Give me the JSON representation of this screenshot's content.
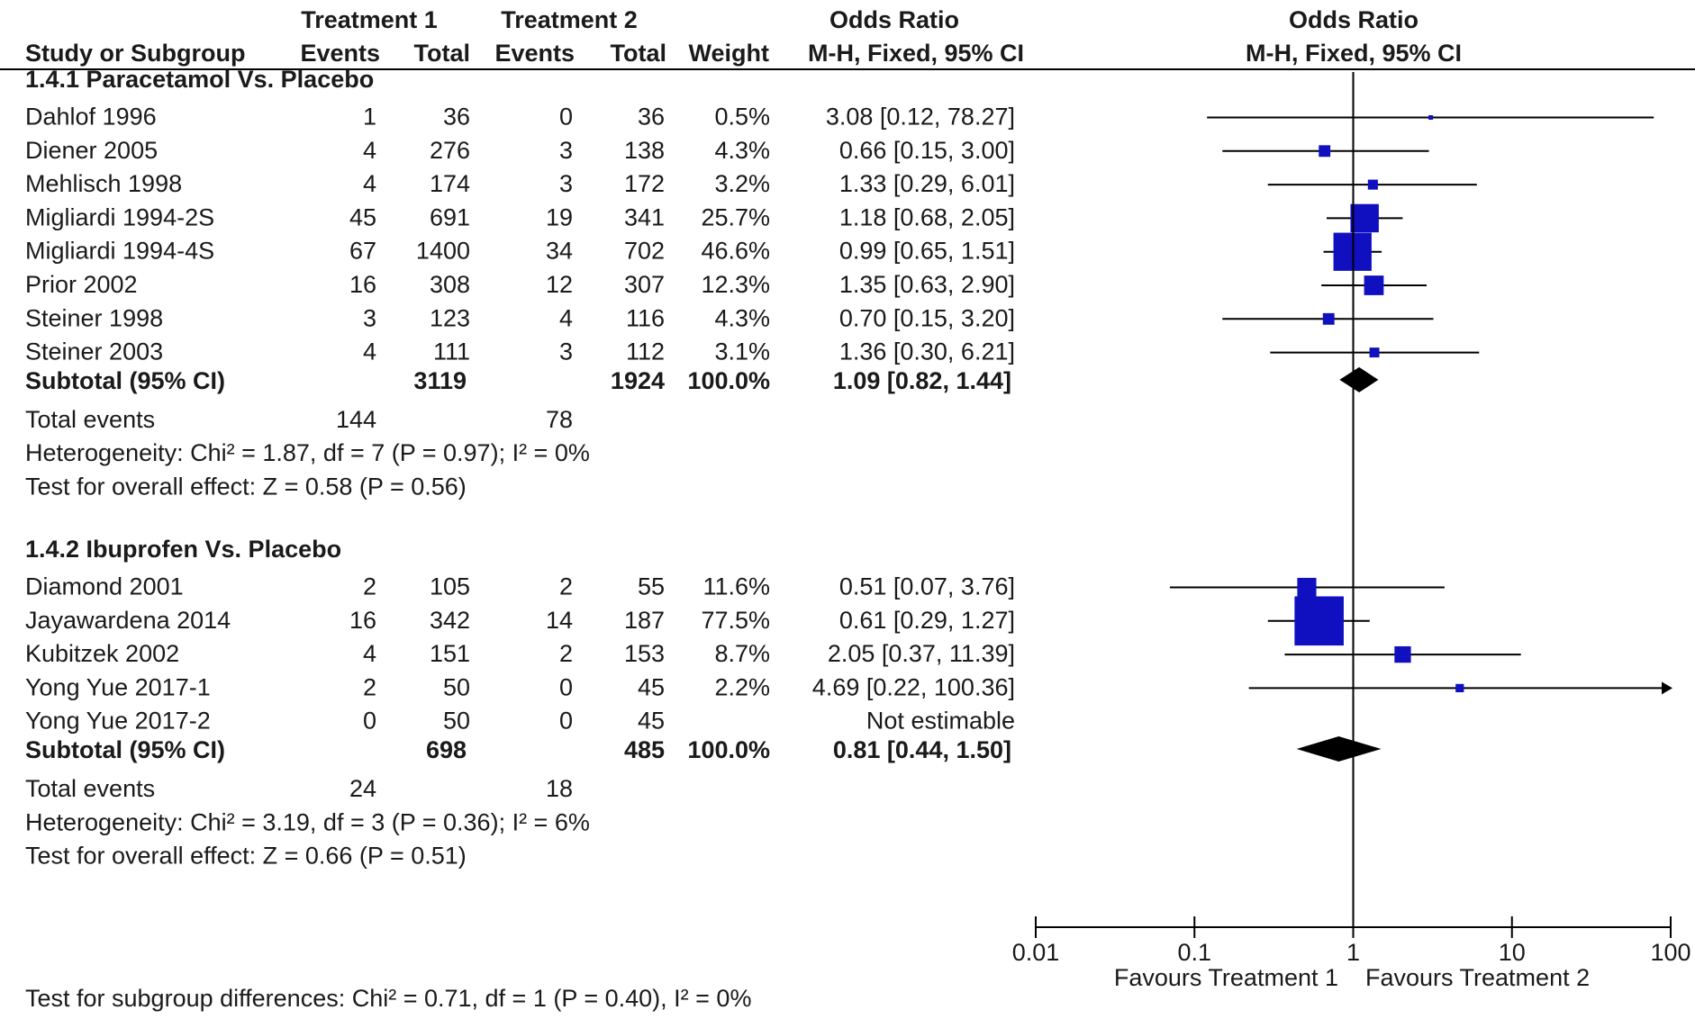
{
  "chart_data": {
    "type": "forest",
    "title": "",
    "header": {
      "group1": "Treatment 1",
      "group2": "Treatment 2",
      "study_col": "Study or Subgroup",
      "events": "Events",
      "total": "Total",
      "weight": "Weight",
      "or_title": "Odds Ratio",
      "or_method": "M-H, Fixed, 95% CI",
      "plot_title": "Odds Ratio",
      "plot_method": "M-H, Fixed, 95% CI"
    },
    "subgroups": [
      {
        "title": "1.4.1 Paracetamol Vs. Placebo",
        "studies": [
          {
            "name": "Dahlof 1996",
            "e1": "1",
            "t1": "36",
            "e2": "0",
            "t2": "36",
            "weight": "0.5%",
            "ci_text": "3.08 [0.12, 78.27]",
            "or": 3.08,
            "lo": 0.12,
            "hi": 78.27,
            "w": 0.5
          },
          {
            "name": "Diener 2005",
            "e1": "4",
            "t1": "276",
            "e2": "3",
            "t2": "138",
            "weight": "4.3%",
            "ci_text": "0.66 [0.15, 3.00]",
            "or": 0.66,
            "lo": 0.15,
            "hi": 3.0,
            "w": 4.3
          },
          {
            "name": "Mehlisch 1998",
            "e1": "4",
            "t1": "174",
            "e2": "3",
            "t2": "172",
            "weight": "3.2%",
            "ci_text": "1.33 [0.29, 6.01]",
            "or": 1.33,
            "lo": 0.29,
            "hi": 6.01,
            "w": 3.2
          },
          {
            "name": "Migliardi 1994-2S",
            "e1": "45",
            "t1": "691",
            "e2": "19",
            "t2": "341",
            "weight": "25.7%",
            "ci_text": "1.18 [0.68, 2.05]",
            "or": 1.18,
            "lo": 0.68,
            "hi": 2.05,
            "w": 25.7
          },
          {
            "name": "Migliardi 1994-4S",
            "e1": "67",
            "t1": "1400",
            "e2": "34",
            "t2": "702",
            "weight": "46.6%",
            "ci_text": "0.99 [0.65, 1.51]",
            "or": 0.99,
            "lo": 0.65,
            "hi": 1.51,
            "w": 46.6
          },
          {
            "name": "Prior 2002",
            "e1": "16",
            "t1": "308",
            "e2": "12",
            "t2": "307",
            "weight": "12.3%",
            "ci_text": "1.35 [0.63, 2.90]",
            "or": 1.35,
            "lo": 0.63,
            "hi": 2.9,
            "w": 12.3
          },
          {
            "name": "Steiner 1998",
            "e1": "3",
            "t1": "123",
            "e2": "4",
            "t2": "116",
            "weight": "4.3%",
            "ci_text": "0.70 [0.15, 3.20]",
            "or": 0.7,
            "lo": 0.15,
            "hi": 3.2,
            "w": 4.3
          },
          {
            "name": "Steiner 2003",
            "e1": "4",
            "t1": "111",
            "e2": "3",
            "t2": "112",
            "weight": "3.1%",
            "ci_text": "1.36 [0.30, 6.21]",
            "or": 1.36,
            "lo": 0.3,
            "hi": 6.21,
            "w": 3.1
          }
        ],
        "subtotal": {
          "label": "Subtotal (95% CI)",
          "t1": "3119",
          "t2": "1924",
          "weight": "100.0%",
          "ci_text": "1.09 [0.82, 1.44]",
          "or": 1.09,
          "lo": 0.82,
          "hi": 1.44
        },
        "total_events": {
          "label": "Total events",
          "e1": "144",
          "e2": "78"
        },
        "heterogeneity": "Heterogeneity: Chi² = 1.87, df = 7 (P = 0.97); I² = 0%",
        "overall": "Test for overall effect: Z = 0.58 (P = 0.56)"
      },
      {
        "title": "1.4.2 Ibuprofen Vs. Placebo",
        "studies": [
          {
            "name": "Diamond 2001",
            "e1": "2",
            "t1": "105",
            "e2": "2",
            "t2": "55",
            "weight": "11.6%",
            "ci_text": "0.51 [0.07, 3.76]",
            "or": 0.51,
            "lo": 0.07,
            "hi": 3.76,
            "w": 11.6
          },
          {
            "name": "Jayawardena 2014",
            "e1": "16",
            "t1": "342",
            "e2": "14",
            "t2": "187",
            "weight": "77.5%",
            "ci_text": "0.61 [0.29, 1.27]",
            "or": 0.61,
            "lo": 0.29,
            "hi": 1.27,
            "w": 77.5
          },
          {
            "name": "Kubitzek 2002",
            "e1": "4",
            "t1": "151",
            "e2": "2",
            "t2": "153",
            "weight": "8.7%",
            "ci_text": "2.05 [0.37, 11.39]",
            "or": 2.05,
            "lo": 0.37,
            "hi": 11.39,
            "w": 8.7
          },
          {
            "name": "Yong Yue 2017-1",
            "e1": "2",
            "t1": "50",
            "e2": "0",
            "t2": "45",
            "weight": "2.2%",
            "ci_text": "4.69 [0.22, 100.36]",
            "or": 4.69,
            "lo": 0.22,
            "hi": 100.36,
            "w": 2.2
          },
          {
            "name": "Yong Yue 2017-2",
            "e1": "0",
            "t1": "50",
            "e2": "0",
            "t2": "45",
            "weight": "",
            "ci_text": "Not estimable",
            "or": null,
            "lo": null,
            "hi": null,
            "w": null
          }
        ],
        "subtotal": {
          "label": "Subtotal (95% CI)",
          "t1": "698",
          "t2": "485",
          "weight": "100.0%",
          "ci_text": "0.81 [0.44, 1.50]",
          "or": 0.81,
          "lo": 0.44,
          "hi": 1.5
        },
        "total_events": {
          "label": "Total events",
          "e1": "24",
          "e2": "18"
        },
        "heterogeneity": "Heterogeneity: Chi² = 3.19, df = 3 (P = 0.36); I² = 6%",
        "overall": "Test for overall effect: Z = 0.66 (P = 0.51)"
      }
    ],
    "x_axis": {
      "scale": "log",
      "range": [
        0.01,
        100
      ],
      "ticks": [
        0.01,
        0.1,
        1,
        10,
        100
      ],
      "tick_labels": [
        "0.01",
        "0.1",
        "1",
        "10",
        "100"
      ],
      "reference": 1,
      "favours_left": "Favours Treatment 1",
      "favours_right": "Favours Treatment 2"
    },
    "subgroup_test": "Test for subgroup differences: Chi² = 0.71, df = 1 (P = 0.40), I² = 0%",
    "colors": {
      "marker": "#1010c0",
      "line": "#000000",
      "diamond": "#000000"
    }
  }
}
